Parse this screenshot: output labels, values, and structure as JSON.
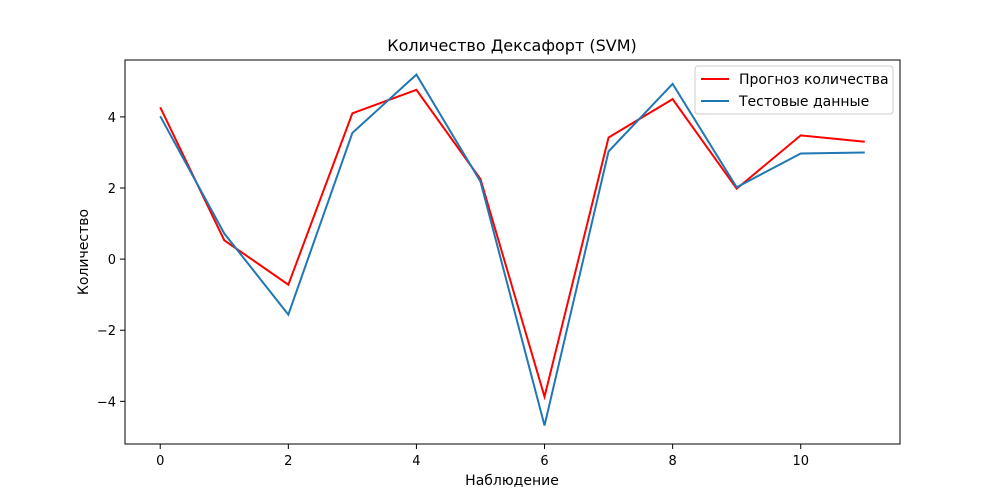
{
  "chart_data": {
    "type": "line",
    "title": "Количество Дексафорт  (SVM)",
    "xlabel": "Наблюдение",
    "ylabel": "Количество",
    "x": [
      0,
      1,
      2,
      3,
      4,
      5,
      6,
      7,
      8,
      9,
      10,
      11
    ],
    "xlim": [
      -0.55,
      11.55
    ],
    "ylim": [
      -5.2,
      5.6
    ],
    "x_ticks": [
      0,
      2,
      4,
      6,
      8,
      10
    ],
    "y_ticks": [
      -4,
      -2,
      0,
      2,
      4
    ],
    "y_tick_labels": [
      "−4",
      "−2",
      "0",
      "2",
      "4"
    ],
    "grid": false,
    "legend_position": "upper right",
    "series": [
      {
        "name": "Прогноз количества",
        "color": "#ff0000",
        "values": [
          4.27,
          0.53,
          -0.72,
          4.1,
          4.76,
          2.25,
          -3.87,
          3.42,
          4.5,
          1.98,
          3.48,
          3.3
        ]
      },
      {
        "name": "Тестовые данные",
        "color": "#1f77b4",
        "values": [
          4.02,
          0.72,
          -1.56,
          3.55,
          5.19,
          2.18,
          -4.68,
          3.03,
          4.93,
          2.02,
          2.97,
          3.0
        ]
      }
    ]
  }
}
